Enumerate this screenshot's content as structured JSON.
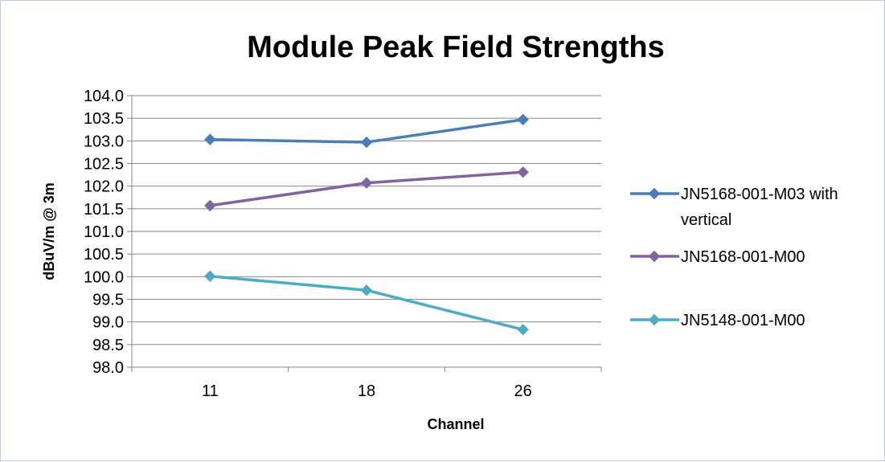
{
  "chart_data": {
    "type": "line",
    "title": "Module Peak Field Strengths",
    "xlabel": "Channel",
    "ylabel": "dBuV/m @ 3m",
    "categories": [
      "11",
      "18",
      "26"
    ],
    "ylim": [
      98.0,
      104.0
    ],
    "ytick_step": 0.5,
    "yticks": [
      "98.0",
      "98.5",
      "99.0",
      "99.5",
      "100.0",
      "100.5",
      "101.0",
      "101.5",
      "102.0",
      "102.5",
      "103.0",
      "103.5",
      "104.0"
    ],
    "grid": true,
    "legend_position": "right",
    "series": [
      {
        "name": "JN5168-001-M03 with vertical",
        "name_lines": [
          "JN5168-001-M03 with",
          "vertical"
        ],
        "color": "#4a7ebb",
        "marker": "diamond",
        "values": [
          103.03,
          102.97,
          103.47
        ]
      },
      {
        "name": "JN5168-001-M00",
        "name_lines": [
          "JN5168-001-M00"
        ],
        "color": "#8064a2",
        "marker": "diamond",
        "values": [
          101.57,
          102.07,
          102.31
        ]
      },
      {
        "name": "JN5148-001-M00",
        "name_lines": [
          "JN5148-001-M00"
        ],
        "color": "#4bacc6",
        "marker": "diamond",
        "values": [
          100.01,
          99.7,
          98.83
        ]
      }
    ]
  }
}
